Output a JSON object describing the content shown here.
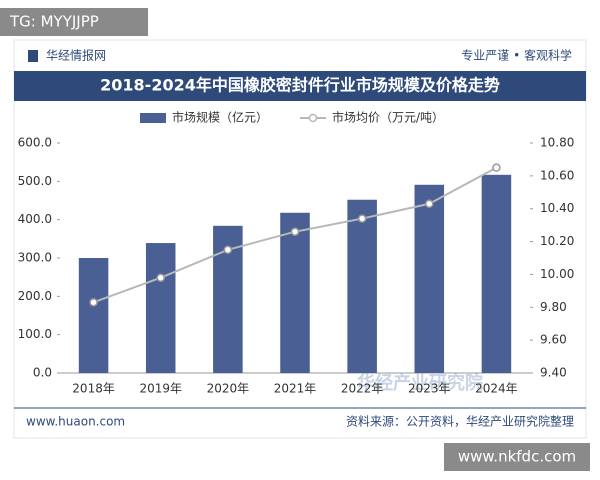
{
  "badge": "TG: MYYJJPP",
  "header": {
    "brand": "华经情报网",
    "slogan": "专业严谨 • 客观科学"
  },
  "watermark": "华经产业研究院",
  "footer": {
    "site": "www.huaon.com",
    "source": "资料来源：公开资料，华经产业研究院整理"
  },
  "corner": "www.nkfdc.com",
  "chart_data": {
    "type": "bar",
    "title": "2018-2024年中国橡胶密封件行业市场规模及价格走势",
    "categories": [
      "2018年",
      "2019年",
      "2020年",
      "2021年",
      "2022年",
      "2023年",
      "2024年"
    ],
    "series": [
      {
        "name": "市场规模（亿元）",
        "type": "bar",
        "color": "#4a5f94",
        "values": [
          300,
          339,
          384,
          418,
          452,
          491,
          517
        ]
      },
      {
        "name": "市场均价（万元/吨）",
        "type": "line",
        "axis": "y2",
        "color": "#b8b8b8",
        "values": [
          9.83,
          9.98,
          10.15,
          10.26,
          10.34,
          10.43,
          10.65
        ]
      }
    ],
    "ylim": [
      0,
      600
    ],
    "yticks": [
      {
        "value": 0,
        "label": "0.0"
      },
      {
        "value": 100,
        "label": "100.0"
      },
      {
        "value": 200,
        "label": "200.0"
      },
      {
        "value": 300,
        "label": "300.0"
      },
      {
        "value": 400,
        "label": "400.0"
      },
      {
        "value": 500,
        "label": "500.0"
      },
      {
        "value": 600,
        "label": "600.0"
      }
    ],
    "y2lim": [
      9.4,
      10.8
    ],
    "y2ticks": [
      {
        "value": 9.4,
        "label": "9.40"
      },
      {
        "value": 9.6,
        "label": "9.60"
      },
      {
        "value": 9.8,
        "label": "9.80"
      },
      {
        "value": 10,
        "label": "10.00"
      },
      {
        "value": 10.2,
        "label": "10.20"
      },
      {
        "value": 10.4,
        "label": "10.40"
      },
      {
        "value": 10.6,
        "label": "10.60"
      },
      {
        "value": 10.8,
        "label": "10.80"
      }
    ],
    "grid": false
  }
}
